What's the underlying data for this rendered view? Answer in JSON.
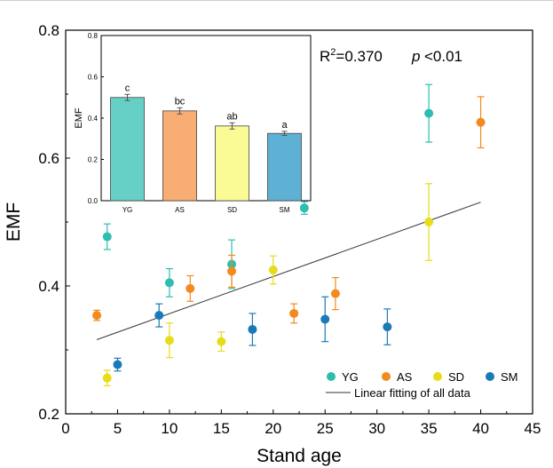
{
  "chart_data": [
    {
      "type": "scatter",
      "xlabel": "Stand age",
      "ylabel": "EMF",
      "xlim": [
        0,
        45
      ],
      "ylim": [
        0.2,
        0.8
      ],
      "xticks": [
        "0",
        "5",
        "10",
        "15",
        "20",
        "25",
        "30",
        "35",
        "40",
        "45"
      ],
      "yticks": [
        "0.2",
        "0.4",
        "0.6",
        "0.8"
      ],
      "grid": false,
      "legend_position": "bottom-right",
      "annotation": {
        "r2_label": "R²=0.370",
        "p_label": "p",
        "p_value": "<0.01"
      },
      "series": [
        {
          "name": "YG",
          "color": "#2ebdb1",
          "points": [
            {
              "x": 4,
              "y": 0.477,
              "err": 0.02
            },
            {
              "x": 10,
              "y": 0.405,
              "err": 0.022
            },
            {
              "x": 16,
              "y": 0.434,
              "err": 0.038
            },
            {
              "x": 23,
              "y": 0.522,
              "err": 0.01
            },
            {
              "x": 35,
              "y": 0.67,
              "err": 0.045
            }
          ]
        },
        {
          "name": "AS",
          "color": "#f28a1e",
          "points": [
            {
              "x": 3,
              "y": 0.354,
              "err": 0.008
            },
            {
              "x": 12,
              "y": 0.396,
              "err": 0.02
            },
            {
              "x": 16,
              "y": 0.423,
              "err": 0.025
            },
            {
              "x": 22,
              "y": 0.357,
              "err": 0.015
            },
            {
              "x": 26,
              "y": 0.388,
              "err": 0.025
            },
            {
              "x": 40,
              "y": 0.656,
              "err": 0.04
            }
          ]
        },
        {
          "name": "SD",
          "color": "#e6dc1a",
          "points": [
            {
              "x": 4,
              "y": 0.256,
              "err": 0.012
            },
            {
              "x": 10,
              "y": 0.315,
              "err": 0.027
            },
            {
              "x": 15,
              "y": 0.313,
              "err": 0.015
            },
            {
              "x": 20,
              "y": 0.425,
              "err": 0.022
            },
            {
              "x": 35,
              "y": 0.5,
              "err": 0.06
            }
          ]
        },
        {
          "name": "SM",
          "color": "#1a7ab8",
          "points": [
            {
              "x": 5,
              "y": 0.277,
              "err": 0.01
            },
            {
              "x": 9,
              "y": 0.354,
              "err": 0.018
            },
            {
              "x": 18,
              "y": 0.332,
              "err": 0.025
            },
            {
              "x": 25,
              "y": 0.348,
              "err": 0.035
            },
            {
              "x": 31,
              "y": 0.336,
              "err": 0.028
            }
          ]
        }
      ],
      "fit_line": {
        "name": "Linear fitting of all data",
        "color": "#333333",
        "x": [
          3,
          40
        ],
        "y": [
          0.316,
          0.531
        ]
      }
    },
    {
      "type": "bar",
      "categories": [
        "YG",
        "AS",
        "SD",
        "SM"
      ],
      "values": [
        0.5,
        0.435,
        0.362,
        0.326
      ],
      "errors": [
        0.015,
        0.015,
        0.015,
        0.01
      ],
      "letters": [
        "c",
        "bc",
        "ab",
        "a"
      ],
      "colors": [
        "#66cfc6",
        "#f7ad73",
        "#fbfb96",
        "#5eb0d4"
      ],
      "ylabel": "EMF",
      "ylim": [
        0,
        0.8
      ],
      "yticks": [
        "0.0",
        "0.2",
        "0.4",
        "0.6",
        "0.8"
      ]
    }
  ]
}
